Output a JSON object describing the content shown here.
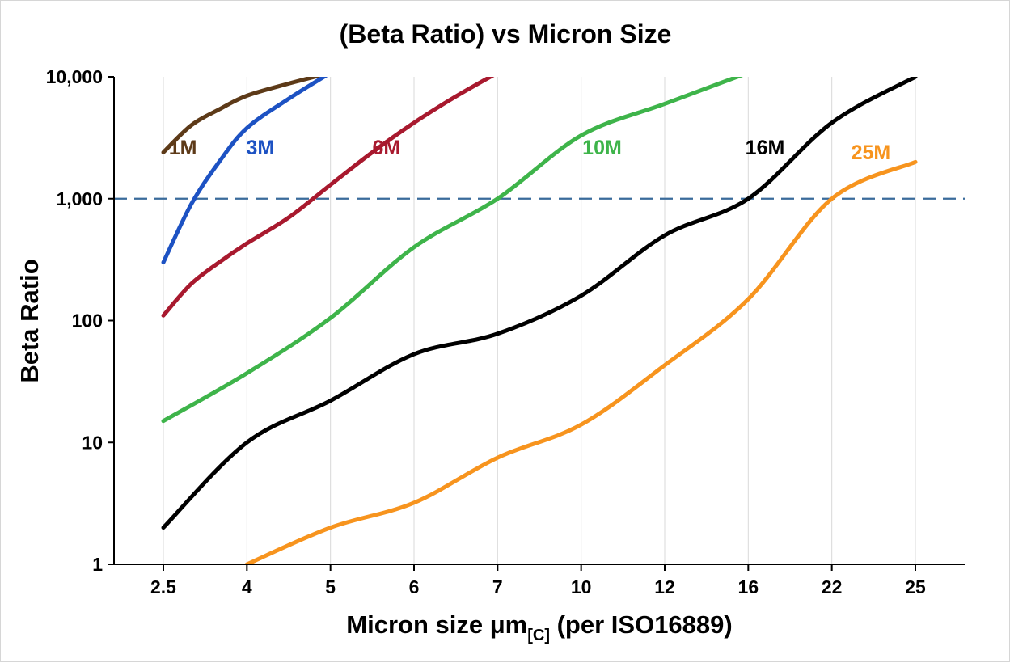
{
  "title": "(Beta Ratio) vs Micron Size",
  "chart_data": {
    "type": "line",
    "x_scale": "categorical",
    "y_scale": "log",
    "title": "(Beta Ratio) vs Micron Size",
    "ylabel": "Beta Ratio",
    "xlabel_main": "Micron size μm",
    "xlabel_sub": "[C]",
    "xlabel_tail": " (per ISO16889)",
    "x_categories": [
      2.5,
      4,
      5,
      6,
      7,
      10,
      12,
      16,
      22,
      25
    ],
    "x_tick_labels": [
      "2.5",
      "4",
      "5",
      "6",
      "7",
      "10",
      "12",
      "16",
      "22",
      "25"
    ],
    "y_ticks": [
      1,
      10,
      100,
      1000,
      10000
    ],
    "y_tick_labels": [
      "1",
      "10",
      "100",
      "1,000",
      "10,000"
    ],
    "ylim": [
      1,
      10000
    ],
    "grid": true,
    "grid_color": "#d9d9d9",
    "axis_color": "#000000",
    "reference_line": {
      "y": 1000,
      "style": "dashed",
      "color": "#3a6b9b"
    },
    "legend_position": "inline-labels",
    "series": [
      {
        "name": "1M",
        "color": "#5d3a18",
        "label_pos": {
          "x": 2.85,
          "y": 2300
        },
        "points": [
          [
            2.5,
            2400
          ],
          [
            3,
            4000
          ],
          [
            3.5,
            5400
          ],
          [
            4,
            7000
          ],
          [
            4.5,
            8800
          ],
          [
            5,
            10800
          ]
        ]
      },
      {
        "name": "3M",
        "color": "#1d52c3",
        "label_pos": {
          "x": 4.16,
          "y": 2300
        },
        "points": [
          [
            2.5,
            300
          ],
          [
            3,
            900
          ],
          [
            3.5,
            2000
          ],
          [
            4,
            3800
          ],
          [
            4.5,
            6600
          ],
          [
            5,
            10800
          ]
        ]
      },
      {
        "name": "6M",
        "color": "#a8192e",
        "label_pos": {
          "x": 5.67,
          "y": 2300
        },
        "points": [
          [
            2.5,
            110
          ],
          [
            3,
            200
          ],
          [
            3.5,
            300
          ],
          [
            4,
            430
          ],
          [
            4.5,
            700
          ],
          [
            5,
            1300
          ],
          [
            5.5,
            2400
          ],
          [
            6,
            4200
          ],
          [
            6.5,
            6900
          ],
          [
            7,
            10800
          ]
        ]
      },
      {
        "name": "10M",
        "color": "#3eb44a",
        "label_pos": {
          "x": 10.5,
          "y": 2300
        },
        "points": [
          [
            2.5,
            15
          ],
          [
            4,
            37
          ],
          [
            5,
            105
          ],
          [
            6,
            400
          ],
          [
            7,
            1000
          ],
          [
            10,
            3300
          ],
          [
            12,
            6000
          ],
          [
            16,
            10800
          ]
        ]
      },
      {
        "name": "16M",
        "color": "#000000",
        "label_pos": {
          "x": 17.2,
          "y": 2300
        },
        "points": [
          [
            2.5,
            2
          ],
          [
            4,
            10
          ],
          [
            5,
            22
          ],
          [
            6,
            53
          ],
          [
            7,
            78
          ],
          [
            10,
            160
          ],
          [
            12,
            500
          ],
          [
            16,
            1000
          ],
          [
            22,
            4200
          ],
          [
            25,
            10000
          ]
        ]
      },
      {
        "name": "25M",
        "color": "#f7941e",
        "label_pos": {
          "x": 23.4,
          "y": 2100
        },
        "points": [
          [
            4,
            1
          ],
          [
            5,
            2
          ],
          [
            6,
            3.2
          ],
          [
            7,
            7.5
          ],
          [
            10,
            14
          ],
          [
            12,
            43
          ],
          [
            16,
            150
          ],
          [
            22,
            1000
          ],
          [
            25,
            2000
          ]
        ]
      }
    ]
  }
}
